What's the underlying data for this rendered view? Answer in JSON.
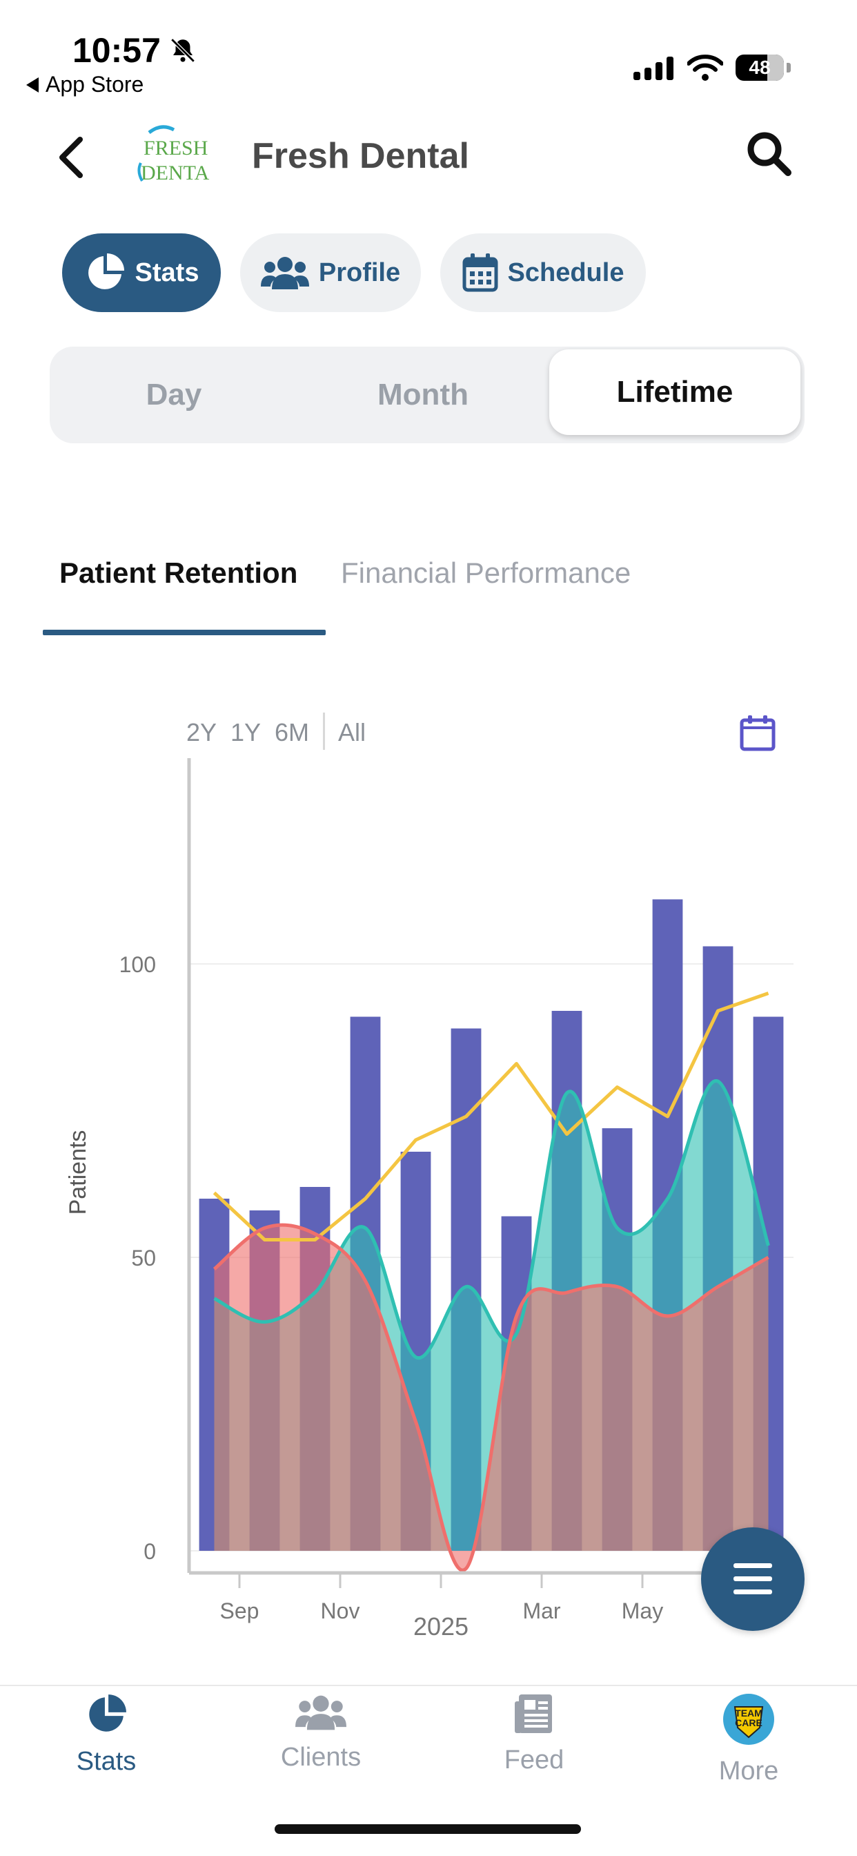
{
  "status_bar": {
    "time": "10:57",
    "back_app": "App Store",
    "battery": "48"
  },
  "header": {
    "title": "Fresh Dental",
    "logo_text_top": "FRESH",
    "logo_text_bottom": "DENTA"
  },
  "main_tabs": [
    {
      "label": "Stats",
      "icon": "pie-chart-icon",
      "active": true
    },
    {
      "label": "Profile",
      "icon": "users-icon",
      "active": false
    },
    {
      "label": "Schedule",
      "icon": "calendar-icon",
      "active": false
    }
  ],
  "period_tabs": [
    {
      "label": "Day",
      "active": false
    },
    {
      "label": "Month",
      "active": false
    },
    {
      "label": "Lifetime",
      "active": true
    }
  ],
  "sub_tabs": [
    {
      "label": "Patient Retention",
      "active": true
    },
    {
      "label": "Financial Performance",
      "active": false
    }
  ],
  "range": {
    "options": [
      "2Y",
      "1Y",
      "6M"
    ],
    "all": "All"
  },
  "chart_data": {
    "type": "bar",
    "xlabel": "",
    "ylabel": "Patients",
    "ylim": [
      0,
      130
    ],
    "y_ticks": [
      0,
      50,
      100
    ],
    "x_tick_labels": [
      "Sep",
      "Nov",
      "2025",
      "Mar",
      "May"
    ],
    "x_tick_months": [
      1,
      3,
      5,
      7,
      9
    ],
    "months": [
      0,
      1,
      2,
      3,
      4,
      5,
      6,
      7,
      8,
      9,
      10,
      11
    ],
    "bars": [
      60,
      58,
      62,
      91,
      68,
      89,
      57,
      92,
      72,
      111,
      103,
      91
    ],
    "series": [
      {
        "color": "#f4c542",
        "kind": "line",
        "values": [
          61,
          53,
          53,
          60,
          70,
          74,
          83,
          71,
          79,
          74,
          92,
          95
        ]
      },
      {
        "color": "#2fbfb2",
        "kind": "area",
        "values": [
          43,
          39,
          44,
          55,
          33,
          45,
          37,
          78,
          55,
          60,
          80,
          52
        ]
      },
      {
        "color": "#ef6f6c",
        "kind": "area",
        "values": [
          48,
          55,
          54,
          46,
          22,
          -3,
          40,
          44,
          45,
          40,
          45,
          50
        ]
      }
    ],
    "colors": {
      "bar": "#5f63b8",
      "axis": "#c8c8c8",
      "grid": "#eeeeee"
    }
  },
  "bottom_nav": [
    {
      "label": "Stats",
      "icon": "pie-chart-icon",
      "active": true
    },
    {
      "label": "Clients",
      "icon": "users-icon",
      "active": false
    },
    {
      "label": "Feed",
      "icon": "newspaper-icon",
      "active": false
    },
    {
      "label": "More",
      "icon": "team-care-badge-icon",
      "active": false,
      "badge_line1": "TEAM",
      "badge_line2": "CARE"
    }
  ]
}
